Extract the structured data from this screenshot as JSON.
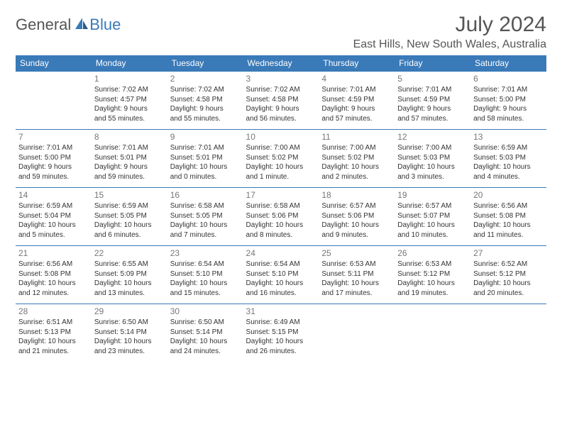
{
  "header": {
    "logo_general": "General",
    "logo_blue": "Blue",
    "month_title": "July 2024",
    "location": "East Hills, New South Wales, Australia"
  },
  "colors": {
    "header_bg": "#3a7ab8",
    "header_text": "#ffffff",
    "border": "#3a7ab8",
    "body_text": "#333333",
    "daynum_text": "#777777",
    "title_text": "#555555"
  },
  "weekdays": [
    "Sunday",
    "Monday",
    "Tuesday",
    "Wednesday",
    "Thursday",
    "Friday",
    "Saturday"
  ],
  "weeks": [
    [
      {
        "num": "",
        "sunrise": "",
        "sunset": "",
        "dl1": "",
        "dl2": ""
      },
      {
        "num": "1",
        "sunrise": "Sunrise: 7:02 AM",
        "sunset": "Sunset: 4:57 PM",
        "dl1": "Daylight: 9 hours",
        "dl2": "and 55 minutes."
      },
      {
        "num": "2",
        "sunrise": "Sunrise: 7:02 AM",
        "sunset": "Sunset: 4:58 PM",
        "dl1": "Daylight: 9 hours",
        "dl2": "and 55 minutes."
      },
      {
        "num": "3",
        "sunrise": "Sunrise: 7:02 AM",
        "sunset": "Sunset: 4:58 PM",
        "dl1": "Daylight: 9 hours",
        "dl2": "and 56 minutes."
      },
      {
        "num": "4",
        "sunrise": "Sunrise: 7:01 AM",
        "sunset": "Sunset: 4:59 PM",
        "dl1": "Daylight: 9 hours",
        "dl2": "and 57 minutes."
      },
      {
        "num": "5",
        "sunrise": "Sunrise: 7:01 AM",
        "sunset": "Sunset: 4:59 PM",
        "dl1": "Daylight: 9 hours",
        "dl2": "and 57 minutes."
      },
      {
        "num": "6",
        "sunrise": "Sunrise: 7:01 AM",
        "sunset": "Sunset: 5:00 PM",
        "dl1": "Daylight: 9 hours",
        "dl2": "and 58 minutes."
      }
    ],
    [
      {
        "num": "7",
        "sunrise": "Sunrise: 7:01 AM",
        "sunset": "Sunset: 5:00 PM",
        "dl1": "Daylight: 9 hours",
        "dl2": "and 59 minutes."
      },
      {
        "num": "8",
        "sunrise": "Sunrise: 7:01 AM",
        "sunset": "Sunset: 5:01 PM",
        "dl1": "Daylight: 9 hours",
        "dl2": "and 59 minutes."
      },
      {
        "num": "9",
        "sunrise": "Sunrise: 7:01 AM",
        "sunset": "Sunset: 5:01 PM",
        "dl1": "Daylight: 10 hours",
        "dl2": "and 0 minutes."
      },
      {
        "num": "10",
        "sunrise": "Sunrise: 7:00 AM",
        "sunset": "Sunset: 5:02 PM",
        "dl1": "Daylight: 10 hours",
        "dl2": "and 1 minute."
      },
      {
        "num": "11",
        "sunrise": "Sunrise: 7:00 AM",
        "sunset": "Sunset: 5:02 PM",
        "dl1": "Daylight: 10 hours",
        "dl2": "and 2 minutes."
      },
      {
        "num": "12",
        "sunrise": "Sunrise: 7:00 AM",
        "sunset": "Sunset: 5:03 PM",
        "dl1": "Daylight: 10 hours",
        "dl2": "and 3 minutes."
      },
      {
        "num": "13",
        "sunrise": "Sunrise: 6:59 AM",
        "sunset": "Sunset: 5:03 PM",
        "dl1": "Daylight: 10 hours",
        "dl2": "and 4 minutes."
      }
    ],
    [
      {
        "num": "14",
        "sunrise": "Sunrise: 6:59 AM",
        "sunset": "Sunset: 5:04 PM",
        "dl1": "Daylight: 10 hours",
        "dl2": "and 5 minutes."
      },
      {
        "num": "15",
        "sunrise": "Sunrise: 6:59 AM",
        "sunset": "Sunset: 5:05 PM",
        "dl1": "Daylight: 10 hours",
        "dl2": "and 6 minutes."
      },
      {
        "num": "16",
        "sunrise": "Sunrise: 6:58 AM",
        "sunset": "Sunset: 5:05 PM",
        "dl1": "Daylight: 10 hours",
        "dl2": "and 7 minutes."
      },
      {
        "num": "17",
        "sunrise": "Sunrise: 6:58 AM",
        "sunset": "Sunset: 5:06 PM",
        "dl1": "Daylight: 10 hours",
        "dl2": "and 8 minutes."
      },
      {
        "num": "18",
        "sunrise": "Sunrise: 6:57 AM",
        "sunset": "Sunset: 5:06 PM",
        "dl1": "Daylight: 10 hours",
        "dl2": "and 9 minutes."
      },
      {
        "num": "19",
        "sunrise": "Sunrise: 6:57 AM",
        "sunset": "Sunset: 5:07 PM",
        "dl1": "Daylight: 10 hours",
        "dl2": "and 10 minutes."
      },
      {
        "num": "20",
        "sunrise": "Sunrise: 6:56 AM",
        "sunset": "Sunset: 5:08 PM",
        "dl1": "Daylight: 10 hours",
        "dl2": "and 11 minutes."
      }
    ],
    [
      {
        "num": "21",
        "sunrise": "Sunrise: 6:56 AM",
        "sunset": "Sunset: 5:08 PM",
        "dl1": "Daylight: 10 hours",
        "dl2": "and 12 minutes."
      },
      {
        "num": "22",
        "sunrise": "Sunrise: 6:55 AM",
        "sunset": "Sunset: 5:09 PM",
        "dl1": "Daylight: 10 hours",
        "dl2": "and 13 minutes."
      },
      {
        "num": "23",
        "sunrise": "Sunrise: 6:54 AM",
        "sunset": "Sunset: 5:10 PM",
        "dl1": "Daylight: 10 hours",
        "dl2": "and 15 minutes."
      },
      {
        "num": "24",
        "sunrise": "Sunrise: 6:54 AM",
        "sunset": "Sunset: 5:10 PM",
        "dl1": "Daylight: 10 hours",
        "dl2": "and 16 minutes."
      },
      {
        "num": "25",
        "sunrise": "Sunrise: 6:53 AM",
        "sunset": "Sunset: 5:11 PM",
        "dl1": "Daylight: 10 hours",
        "dl2": "and 17 minutes."
      },
      {
        "num": "26",
        "sunrise": "Sunrise: 6:53 AM",
        "sunset": "Sunset: 5:12 PM",
        "dl1": "Daylight: 10 hours",
        "dl2": "and 19 minutes."
      },
      {
        "num": "27",
        "sunrise": "Sunrise: 6:52 AM",
        "sunset": "Sunset: 5:12 PM",
        "dl1": "Daylight: 10 hours",
        "dl2": "and 20 minutes."
      }
    ],
    [
      {
        "num": "28",
        "sunrise": "Sunrise: 6:51 AM",
        "sunset": "Sunset: 5:13 PM",
        "dl1": "Daylight: 10 hours",
        "dl2": "and 21 minutes."
      },
      {
        "num": "29",
        "sunrise": "Sunrise: 6:50 AM",
        "sunset": "Sunset: 5:14 PM",
        "dl1": "Daylight: 10 hours",
        "dl2": "and 23 minutes."
      },
      {
        "num": "30",
        "sunrise": "Sunrise: 6:50 AM",
        "sunset": "Sunset: 5:14 PM",
        "dl1": "Daylight: 10 hours",
        "dl2": "and 24 minutes."
      },
      {
        "num": "31",
        "sunrise": "Sunrise: 6:49 AM",
        "sunset": "Sunset: 5:15 PM",
        "dl1": "Daylight: 10 hours",
        "dl2": "and 26 minutes."
      },
      {
        "num": "",
        "sunrise": "",
        "sunset": "",
        "dl1": "",
        "dl2": ""
      },
      {
        "num": "",
        "sunrise": "",
        "sunset": "",
        "dl1": "",
        "dl2": ""
      },
      {
        "num": "",
        "sunrise": "",
        "sunset": "",
        "dl1": "",
        "dl2": ""
      }
    ]
  ]
}
